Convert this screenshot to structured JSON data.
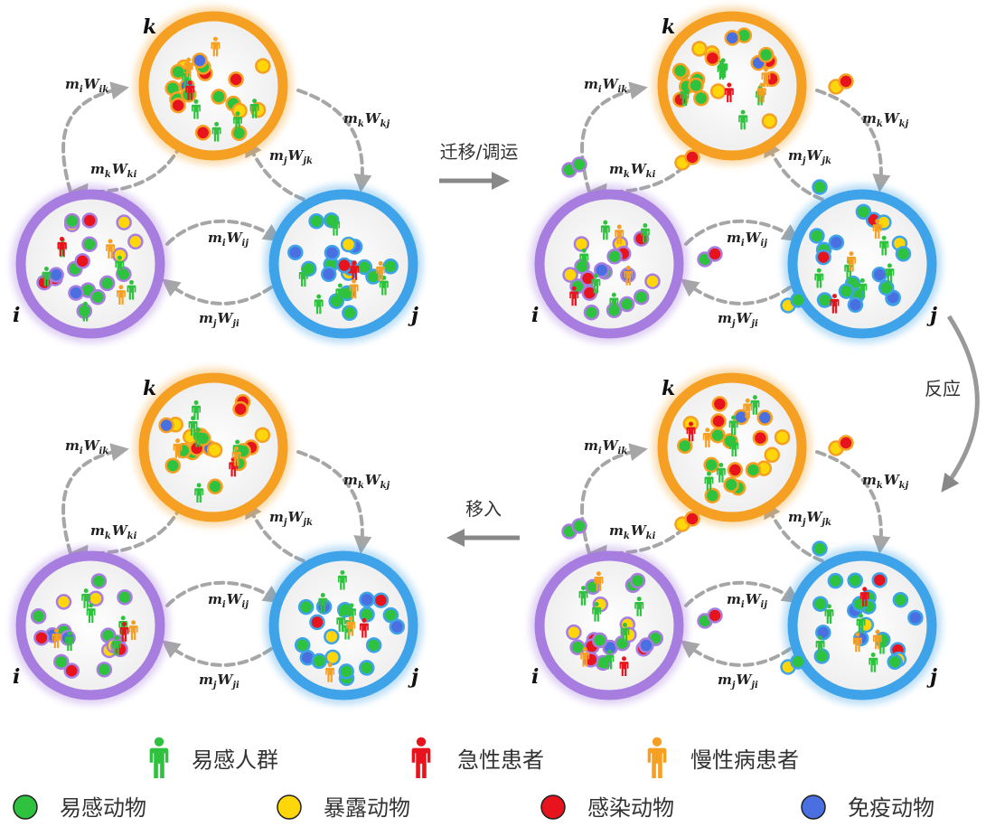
{
  "nodes": {
    "k": "k",
    "i": "i",
    "j": "j"
  },
  "edges": {
    "ik": {
      "m": "m",
      "ms": "i",
      "w": "W",
      "ws": "ik"
    },
    "ki": {
      "m": "m",
      "ms": "k",
      "w": "W",
      "ws": "ki"
    },
    "kj": {
      "m": "m",
      "ms": "k",
      "w": "W",
      "ws": "kj"
    },
    "jk": {
      "m": "m",
      "ms": "j",
      "w": "W",
      "ws": "jk"
    },
    "ij": {
      "m": "m",
      "ms": "i",
      "w": "W",
      "ws": "ij"
    },
    "ji": {
      "m": "m",
      "ms": "j",
      "w": "W",
      "ws": "ji"
    }
  },
  "steps": {
    "migrate": "迁移/调运",
    "react": "反应",
    "immigrate": "移入"
  },
  "legend": {
    "susceptible_human": "易感人群",
    "acute_patient": "急性患者",
    "chronic_patient": "慢性病患者",
    "susceptible_animal": "易感动物",
    "exposed_animal": "暴露动物",
    "infected_animal": "感染动物",
    "immune_animal": "免疫动物"
  },
  "colors": {
    "k_ring": "#f5a023",
    "i_ring": "#a77ee0",
    "j_ring": "#3ea3e8",
    "susceptible": "#2fc23f",
    "exposed": "#ffd60a",
    "infected": "#e8141d",
    "immune": "#4a6fe0",
    "chronic": "#f5a023",
    "arrow": "#a6a6a6"
  }
}
